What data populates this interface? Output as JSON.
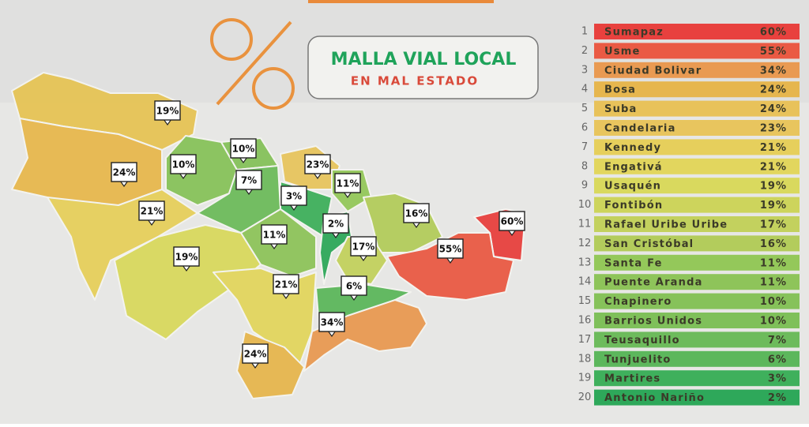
{
  "symbol": "%",
  "title": "MALLA VIAL LOCAL",
  "subtitle": "EN MAL ESTADO",
  "ranking": [
    {
      "rank": "1",
      "name": "Sumapaz",
      "value": "60%",
      "color": "#e8413e"
    },
    {
      "rank": "2",
      "name": "Usme",
      "value": "55%",
      "color": "#ea5a44"
    },
    {
      "rank": "3",
      "name": "Ciudad Bolivar",
      "value": "34%",
      "color": "#e99a52"
    },
    {
      "rank": "4",
      "name": "Bosa",
      "value": "24%",
      "color": "#e6b64e"
    },
    {
      "rank": "5",
      "name": "Suba",
      "value": "24%",
      "color": "#e8c25a"
    },
    {
      "rank": "6",
      "name": "Candelaria",
      "value": "23%",
      "color": "#e8c55e"
    },
    {
      "rank": "7",
      "name": "Kennedy",
      "value": "21%",
      "color": "#e6cf5c"
    },
    {
      "rank": "8",
      "name": "Engativá",
      "value": "21%",
      "color": "#e2d65e"
    },
    {
      "rank": "9",
      "name": "Usaquén",
      "value": "19%",
      "color": "#d9d95e"
    },
    {
      "rank": "10",
      "name": "Fontibón",
      "value": "19%",
      "color": "#cdd45c"
    },
    {
      "rank": "11",
      "name": "Rafael Uribe Uribe",
      "value": "17%",
      "color": "#c3d15e"
    },
    {
      "rank": "12",
      "name": "San Cristóbal",
      "value": "16%",
      "color": "#b3cc5c"
    },
    {
      "rank": "13",
      "name": "Santa Fe",
      "value": "11%",
      "color": "#94c85a"
    },
    {
      "rank": "14",
      "name": "Puente Aranda",
      "value": "11%",
      "color": "#8ec45a"
    },
    {
      "rank": "15",
      "name": "Chapinero",
      "value": "10%",
      "color": "#86c25a"
    },
    {
      "rank": "16",
      "name": "Barrios Unidos",
      "value": "10%",
      "color": "#7fc05a"
    },
    {
      "rank": "17",
      "name": "Teusaquillo",
      "value": "7%",
      "color": "#6dbb5c"
    },
    {
      "rank": "18",
      "name": "Tunjuelito",
      "value": "6%",
      "color": "#5cb75c"
    },
    {
      "rank": "19",
      "name": "Martires",
      "value": "3%",
      "color": "#3fb05c"
    },
    {
      "rank": "20",
      "name": "Antonio Nariño",
      "value": "2%",
      "color": "#2ea85a"
    }
  ],
  "map_labels": [
    "19%",
    "10%",
    "24%",
    "10%",
    "7%",
    "23%",
    "11%",
    "3%",
    "21%",
    "2%",
    "16%",
    "60%",
    "11%",
    "17%",
    "55%",
    "19%",
    "21%",
    "6%",
    "34%",
    "24%"
  ]
}
